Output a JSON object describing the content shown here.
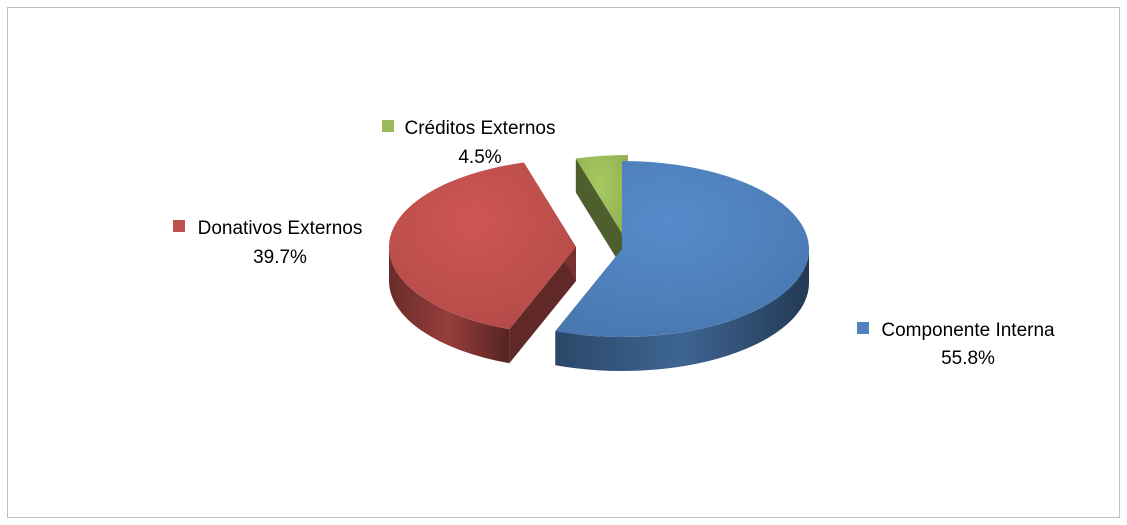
{
  "chart_data": {
    "type": "pie",
    "three_d": true,
    "exploded": true,
    "slices": [
      {
        "label": "Componente Interna",
        "value": 55.8,
        "pct_label": "55.8%",
        "color": "#4f81bd"
      },
      {
        "label": "Donativos Externos",
        "value": 39.7,
        "pct_label": "39.7%",
        "color": "#c0504d"
      },
      {
        "label": "Créditos Externos",
        "value": 4.5,
        "pct_label": "4.5%",
        "color": "#9bbb59"
      }
    ],
    "legend": "none (data labels with color keys)"
  }
}
